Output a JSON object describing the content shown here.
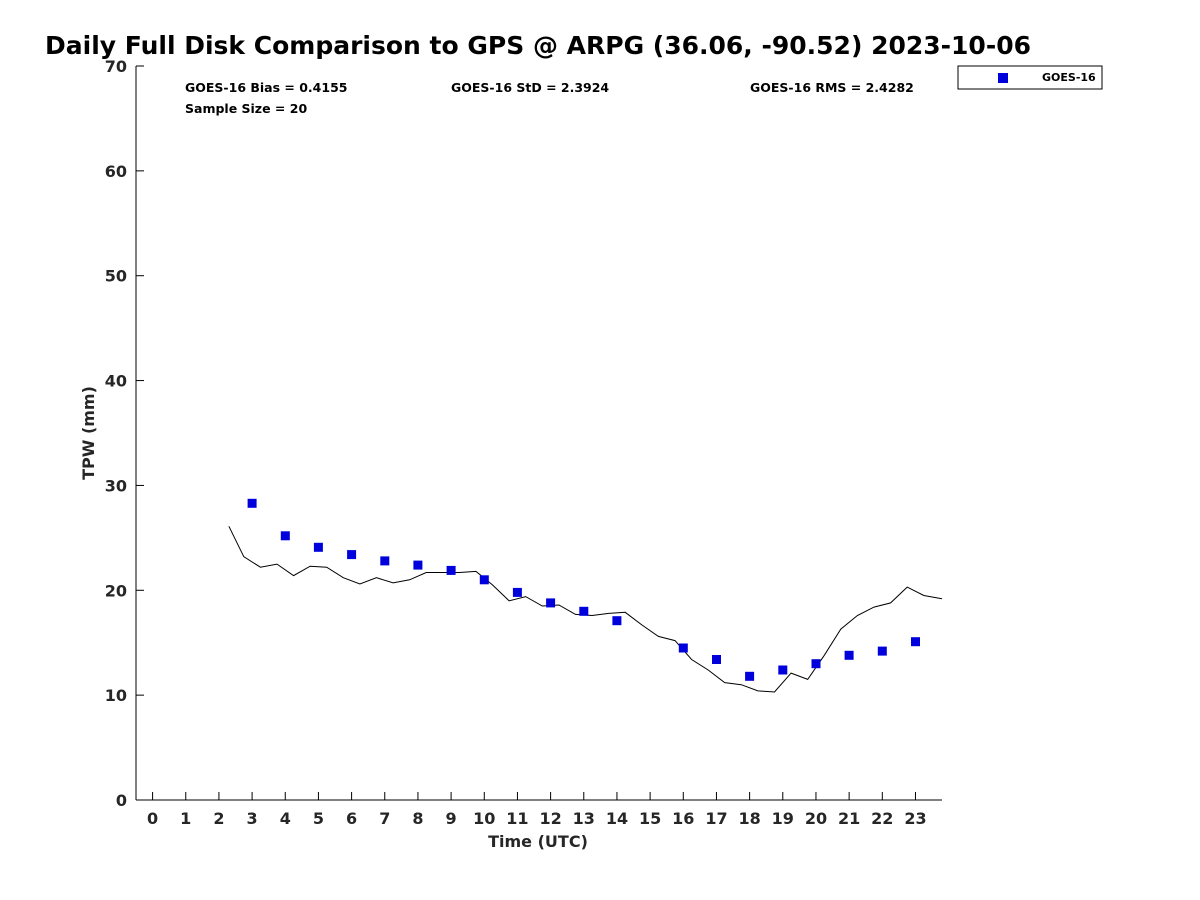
{
  "chart_data": {
    "type": "scatter",
    "title": "Daily Full Disk Comparison to GPS @ ARPG (36.06, -90.52) 2023-10-06",
    "xlabel": "Time (UTC)",
    "ylabel": "TPW (mm)",
    "xlim": [
      -0.5,
      23.8
    ],
    "ylim": [
      0,
      70
    ],
    "x_ticks": [
      "0",
      "1",
      "2",
      "3",
      "4",
      "5",
      "6",
      "7",
      "8",
      "9",
      "10",
      "11",
      "12",
      "13",
      "14",
      "15",
      "16",
      "17",
      "18",
      "19",
      "20",
      "21",
      "22",
      "23"
    ],
    "y_ticks": [
      "0",
      "10",
      "20",
      "30",
      "40",
      "50",
      "60",
      "70"
    ],
    "grid": false,
    "legend_position": "top-right outside",
    "stats": {
      "bias": "GOES-16 Bias = 0.4155",
      "std": "GOES-16 StD = 2.3924",
      "rms": "GOES-16 RMS = 2.4282",
      "sample": "Sample Size = 20"
    },
    "series": [
      {
        "name": "GOES-16",
        "kind": "scatter",
        "marker": "square",
        "color": "#0000dd",
        "points": [
          [
            3,
            28.3
          ],
          [
            4,
            25.2
          ],
          [
            5,
            24.1
          ],
          [
            6,
            23.4
          ],
          [
            7,
            22.8
          ],
          [
            8,
            22.4
          ],
          [
            9,
            21.9
          ],
          [
            10,
            21.0
          ],
          [
            11,
            19.8
          ],
          [
            12,
            18.8
          ],
          [
            13,
            18.0
          ],
          [
            14,
            17.1
          ],
          [
            16,
            14.5
          ],
          [
            17,
            13.4
          ],
          [
            18,
            11.8
          ],
          [
            19,
            12.4
          ],
          [
            20,
            13.0
          ],
          [
            21,
            13.8
          ],
          [
            22,
            14.2
          ],
          [
            23,
            15.1
          ]
        ]
      },
      {
        "kind": "line",
        "color": "#000000",
        "points": [
          [
            2.3,
            26.1
          ],
          [
            2.75,
            23.2
          ],
          [
            3.25,
            22.2
          ],
          [
            3.75,
            22.5
          ],
          [
            4.25,
            21.4
          ],
          [
            4.75,
            22.3
          ],
          [
            5.25,
            22.2
          ],
          [
            5.75,
            21.2
          ],
          [
            6.25,
            20.6
          ],
          [
            6.75,
            21.2
          ],
          [
            7.25,
            20.7
          ],
          [
            7.75,
            21.0
          ],
          [
            8.25,
            21.7
          ],
          [
            8.75,
            21.7
          ],
          [
            9.25,
            21.7
          ],
          [
            9.75,
            21.8
          ],
          [
            10.25,
            20.5
          ],
          [
            10.75,
            19.0
          ],
          [
            11.25,
            19.4
          ],
          [
            11.75,
            18.5
          ],
          [
            12.25,
            18.6
          ],
          [
            12.75,
            17.7
          ],
          [
            13.25,
            17.6
          ],
          [
            13.75,
            17.8
          ],
          [
            14.25,
            17.9
          ],
          [
            14.75,
            16.7
          ],
          [
            15.25,
            15.6
          ],
          [
            15.75,
            15.2
          ],
          [
            16.25,
            13.4
          ],
          [
            16.75,
            12.4
          ],
          [
            17.25,
            11.2
          ],
          [
            17.75,
            11.0
          ],
          [
            18.25,
            10.4
          ],
          [
            18.75,
            10.3
          ],
          [
            19.25,
            12.1
          ],
          [
            19.75,
            11.5
          ],
          [
            20.25,
            13.8
          ],
          [
            20.75,
            16.3
          ],
          [
            21.25,
            17.6
          ],
          [
            21.75,
            18.4
          ],
          [
            22.25,
            18.8
          ],
          [
            22.75,
            20.3
          ],
          [
            23.25,
            19.5
          ],
          [
            23.8,
            19.2
          ]
        ]
      }
    ]
  }
}
